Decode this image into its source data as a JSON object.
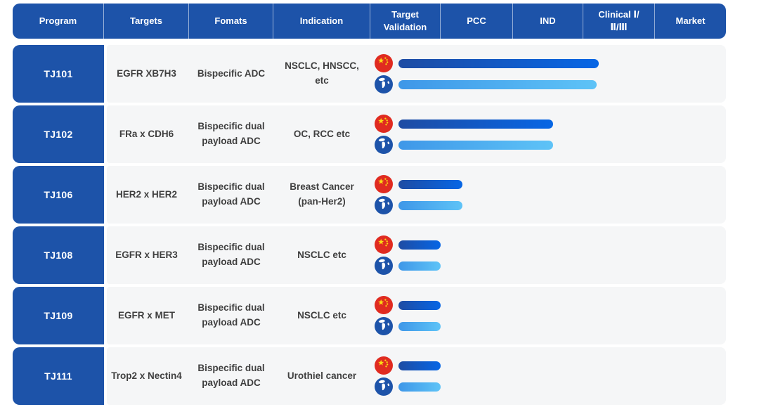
{
  "colors": {
    "primary_blue": "#1d53a9",
    "row_background": "#f5f6f7",
    "china_bar_gradient": [
      "#1e4ca3",
      "#0766e5"
    ],
    "global_bar_gradient": [
      "#3e97e8",
      "#5ec3f7"
    ],
    "body_text": "#3f3f3f",
    "flag_red": "#e02b20",
    "flag_yellow": "#fadb14"
  },
  "header": {
    "columns": [
      "Program",
      "Targets",
      "Fomats",
      "Indication",
      "Target\nValidation",
      "PCC",
      "IND",
      "Clinical Ⅰ/\nⅡ/Ⅲ",
      "Market"
    ]
  },
  "rows": [
    {
      "program": "TJ101",
      "targets": "EGFR XB7H3",
      "format": "Bispecific ADC",
      "indication": "NSCLC, HNSCC,\netc",
      "bars": {
        "china": 285,
        "global": 282
      }
    },
    {
      "program": "TJ102",
      "targets": "FRa x CDH6",
      "format": "Bispecific dual\npayload ADC",
      "indication": "OC, RCC etc",
      "bars": {
        "china": 220,
        "global": 220
      }
    },
    {
      "program": "TJ106",
      "targets": "HER2 x HER2",
      "format": "Bispecific dual\npayload ADC",
      "indication": "Breast Cancer\n(pan-Her2)",
      "bars": {
        "china": 91,
        "global": 91
      }
    },
    {
      "program": "TJ108",
      "targets": "EGFR x HER3",
      "format": "Bispecific dual\npayload ADC",
      "indication": "NSCLC etc",
      "bars": {
        "china": 60,
        "global": 60
      }
    },
    {
      "program": "TJ109",
      "targets": "EGFR x MET",
      "format": "Bispecific dual\npayload ADC",
      "indication": "NSCLC etc",
      "bars": {
        "china": 60,
        "global": 60
      }
    },
    {
      "program": "TJ111",
      "targets": "Trop2 x Nectin4",
      "format": "Bispecific dual\npayload ADC",
      "indication": "Urothiel cancer",
      "bars": {
        "china": 60,
        "global": 60
      }
    }
  ],
  "icons": {
    "china": "china-flag-icon",
    "global": "globe-icon"
  },
  "chart_data": {
    "type": "table",
    "title": "ADC pipeline: programs vs development stage progress",
    "stages": [
      "Target Validation",
      "PCC",
      "IND",
      "Clinical Ⅰ/Ⅱ/Ⅲ",
      "Market"
    ],
    "series": [
      {
        "name": "China (flag icon, dark blue bar)"
      },
      {
        "name": "Global (globe icon, light blue bar)"
      }
    ],
    "programs": [
      {
        "program": "TJ101",
        "targets": "EGFR XB7H3",
        "format": "Bispecific ADC",
        "indication": "NSCLC, HNSCC, etc",
        "china_stage": "Clinical Ⅰ/Ⅱ/Ⅲ (early)",
        "global_stage": "Clinical Ⅰ/Ⅱ/Ⅲ (early)"
      },
      {
        "program": "TJ102",
        "targets": "FRa x CDH6",
        "format": "Bispecific dual payload ADC",
        "indication": "OC, RCC etc",
        "china_stage": "IND",
        "global_stage": "IND"
      },
      {
        "program": "TJ106",
        "targets": "HER2 x HER2",
        "format": "Bispecific dual payload ADC",
        "indication": "Breast Cancer (pan-Her2)",
        "china_stage": "PCC",
        "global_stage": "PCC"
      },
      {
        "program": "TJ108",
        "targets": "EGFR x HER3",
        "format": "Bispecific dual payload ADC",
        "indication": "NSCLC etc",
        "china_stage": "Target Validation",
        "global_stage": "Target Validation"
      },
      {
        "program": "TJ109",
        "targets": "EGFR x MET",
        "format": "Bispecific dual payload ADC",
        "indication": "NSCLC etc",
        "china_stage": "Target Validation",
        "global_stage": "Target Validation"
      },
      {
        "program": "TJ111",
        "targets": "Trop2 x Nectin4",
        "format": "Bispecific dual payload ADC",
        "indication": "Urothiel cancer",
        "china_stage": "Target Validation",
        "global_stage": "Target Validation"
      }
    ]
  }
}
